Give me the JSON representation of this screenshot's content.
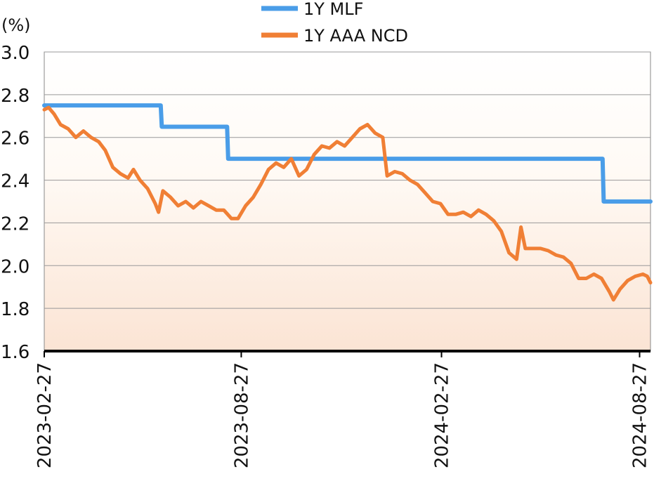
{
  "chart_data": {
    "type": "line",
    "unit_label": "(%)",
    "ylim": [
      1.6,
      3.0
    ],
    "y_ticks": [
      "3.0",
      "2.8",
      "2.6",
      "2.4",
      "2.2",
      "2.0",
      "1.8",
      "1.6"
    ],
    "y_tick_values": [
      3.0,
      2.8,
      2.6,
      2.4,
      2.2,
      2.0,
      1.8,
      1.6
    ],
    "xlim": [
      "2023-02-27",
      "2024-09-06"
    ],
    "x_ticks": [
      "2023-02-27",
      "2023-08-27",
      "2024-02-27",
      "2024-08-27"
    ],
    "grid": true,
    "legend_position": "top-center",
    "series": [
      {
        "name": "1Y MLF",
        "color": "#4A9DE8",
        "step": true,
        "points": [
          [
            "2023-02-27",
            2.75
          ],
          [
            "2023-06-14",
            2.75
          ],
          [
            "2023-06-15",
            2.65
          ],
          [
            "2023-08-14",
            2.65
          ],
          [
            "2023-08-15",
            2.5
          ],
          [
            "2024-07-24",
            2.5
          ],
          [
            "2024-07-25",
            2.3
          ],
          [
            "2024-09-06",
            2.3
          ]
        ]
      },
      {
        "name": "1Y AAA NCD",
        "color": "#F07F35",
        "step": false,
        "points": [
          [
            "2023-02-27",
            2.73
          ],
          [
            "2023-03-03",
            2.74
          ],
          [
            "2023-03-08",
            2.71
          ],
          [
            "2023-03-14",
            2.66
          ],
          [
            "2023-03-21",
            2.64
          ],
          [
            "2023-03-28",
            2.6
          ],
          [
            "2023-04-04",
            2.63
          ],
          [
            "2023-04-11",
            2.6
          ],
          [
            "2023-04-18",
            2.58
          ],
          [
            "2023-04-24",
            2.54
          ],
          [
            "2023-05-01",
            2.46
          ],
          [
            "2023-05-08",
            2.43
          ],
          [
            "2023-05-15",
            2.41
          ],
          [
            "2023-05-20",
            2.45
          ],
          [
            "2023-05-26",
            2.4
          ],
          [
            "2023-06-02",
            2.36
          ],
          [
            "2023-06-09",
            2.29
          ],
          [
            "2023-06-12",
            2.25
          ],
          [
            "2023-06-16",
            2.35
          ],
          [
            "2023-06-23",
            2.32
          ],
          [
            "2023-06-30",
            2.28
          ],
          [
            "2023-07-07",
            2.3
          ],
          [
            "2023-07-14",
            2.27
          ],
          [
            "2023-07-21",
            2.3
          ],
          [
            "2023-07-28",
            2.28
          ],
          [
            "2023-08-04",
            2.26
          ],
          [
            "2023-08-11",
            2.26
          ],
          [
            "2023-08-18",
            2.22
          ],
          [
            "2023-08-24",
            2.22
          ],
          [
            "2023-08-31",
            2.28
          ],
          [
            "2023-09-07",
            2.32
          ],
          [
            "2023-09-14",
            2.38
          ],
          [
            "2023-09-21",
            2.45
          ],
          [
            "2023-09-28",
            2.48
          ],
          [
            "2023-10-05",
            2.46
          ],
          [
            "2023-10-12",
            2.5
          ],
          [
            "2023-10-19",
            2.42
          ],
          [
            "2023-10-26",
            2.45
          ],
          [
            "2023-11-02",
            2.52
          ],
          [
            "2023-11-09",
            2.56
          ],
          [
            "2023-11-16",
            2.55
          ],
          [
            "2023-11-23",
            2.58
          ],
          [
            "2023-11-30",
            2.56
          ],
          [
            "2023-12-07",
            2.6
          ],
          [
            "2023-12-14",
            2.64
          ],
          [
            "2023-12-21",
            2.66
          ],
          [
            "2023-12-28",
            2.62
          ],
          [
            "2024-01-04",
            2.6
          ],
          [
            "2024-01-08",
            2.42
          ],
          [
            "2024-01-15",
            2.44
          ],
          [
            "2024-01-22",
            2.43
          ],
          [
            "2024-01-29",
            2.4
          ],
          [
            "2024-02-05",
            2.38
          ],
          [
            "2024-02-12",
            2.34
          ],
          [
            "2024-02-19",
            2.3
          ],
          [
            "2024-02-26",
            2.29
          ],
          [
            "2024-03-04",
            2.24
          ],
          [
            "2024-03-11",
            2.24
          ],
          [
            "2024-03-18",
            2.25
          ],
          [
            "2024-03-25",
            2.23
          ],
          [
            "2024-04-01",
            2.26
          ],
          [
            "2024-04-08",
            2.24
          ],
          [
            "2024-04-15",
            2.21
          ],
          [
            "2024-04-22",
            2.16
          ],
          [
            "2024-04-29",
            2.06
          ],
          [
            "2024-05-06",
            2.03
          ],
          [
            "2024-05-10",
            2.18
          ],
          [
            "2024-05-14",
            2.08
          ],
          [
            "2024-05-21",
            2.08
          ],
          [
            "2024-05-28",
            2.08
          ],
          [
            "2024-06-04",
            2.07
          ],
          [
            "2024-06-11",
            2.05
          ],
          [
            "2024-06-18",
            2.04
          ],
          [
            "2024-06-25",
            2.01
          ],
          [
            "2024-07-02",
            1.94
          ],
          [
            "2024-07-09",
            1.94
          ],
          [
            "2024-07-16",
            1.96
          ],
          [
            "2024-07-23",
            1.94
          ],
          [
            "2024-07-30",
            1.88
          ],
          [
            "2024-08-03",
            1.84
          ],
          [
            "2024-08-09",
            1.89
          ],
          [
            "2024-08-16",
            1.93
          ],
          [
            "2024-08-23",
            1.95
          ],
          [
            "2024-08-30",
            1.96
          ],
          [
            "2024-09-03",
            1.95
          ],
          [
            "2024-09-06",
            1.92
          ]
        ]
      }
    ]
  }
}
